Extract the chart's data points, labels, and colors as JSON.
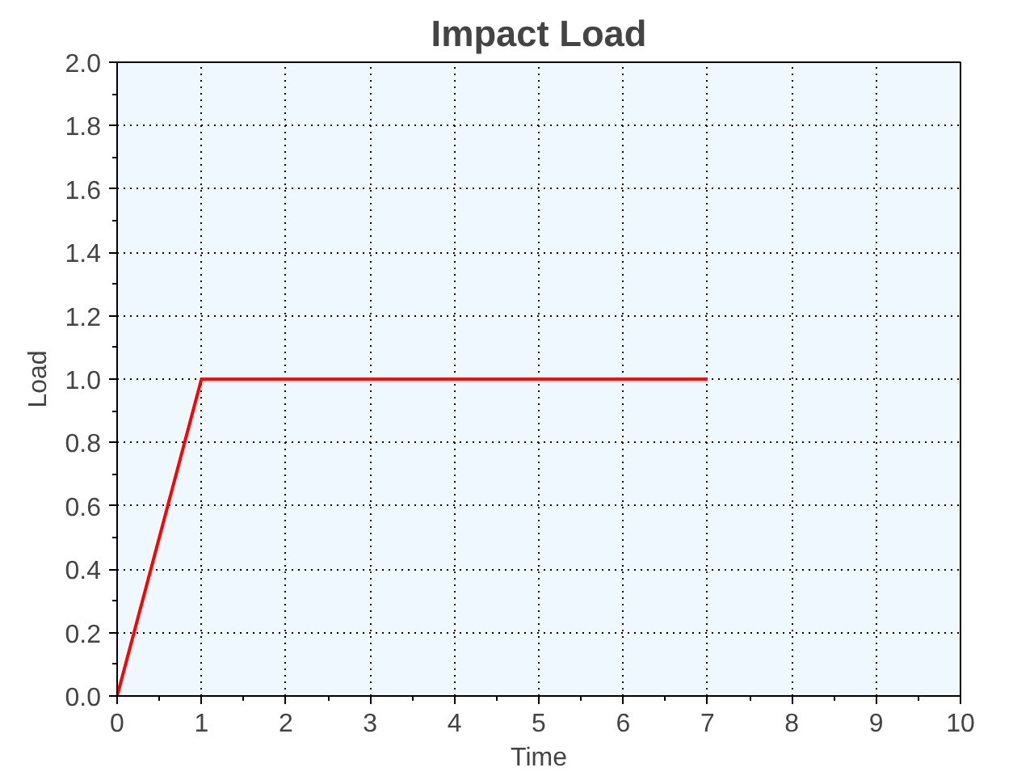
{
  "chart_data": {
    "type": "line",
    "title": "Impact Load",
    "xlabel": "Time",
    "ylabel": "Load",
    "x": [
      0,
      1,
      7
    ],
    "series": [
      {
        "color": "#ff0000",
        "values": [
          0,
          1,
          1
        ]
      }
    ],
    "xlim": [
      0,
      10
    ],
    "xticks": [
      0,
      1,
      2,
      3,
      4,
      5,
      6,
      7,
      8,
      9,
      10
    ],
    "ylim": [
      0,
      2
    ],
    "yticks": [
      {
        "value": 0,
        "label": "0.0"
      },
      {
        "value": 0.2,
        "label": "0.2"
      },
      {
        "value": 0.4,
        "label": "0.4"
      },
      {
        "value": 0.6,
        "label": "0.6"
      },
      {
        "value": 0.8,
        "label": "0.8"
      },
      {
        "value": 1,
        "label": "1.0"
      },
      {
        "value": 1.2,
        "label": "1.2"
      },
      {
        "value": 1.4,
        "label": "1.4"
      },
      {
        "value": 1.6,
        "label": "1.6"
      },
      {
        "value": 1.8,
        "label": "1.8"
      },
      {
        "value": 2,
        "label": "2.0"
      }
    ],
    "grid": true,
    "line_style": "solid",
    "marker": "none"
  }
}
